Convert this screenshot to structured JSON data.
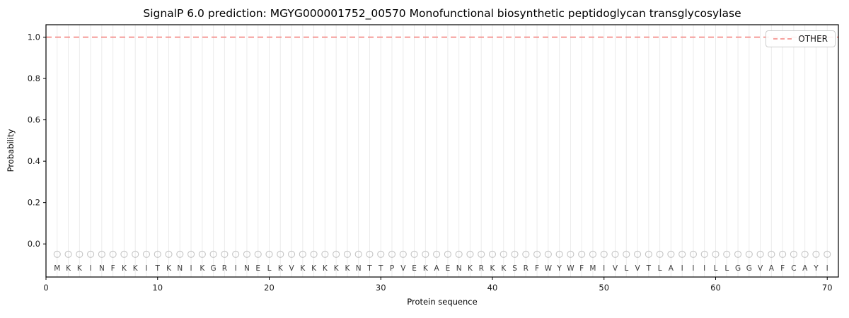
{
  "chart_data": {
    "type": "line",
    "title": "SignalP 6.0 prediction: MGYG000001752_00570 Monofunctional biosynthetic peptidoglycan transglycosylase",
    "xlabel": "Protein sequence",
    "ylabel": "Probability",
    "xlim": [
      0,
      71
    ],
    "ylim": [
      -0.16,
      1.06
    ],
    "x_ticks": [
      0,
      10,
      20,
      30,
      40,
      50,
      60,
      70
    ],
    "y_ticks": [
      0.0,
      0.2,
      0.4,
      0.6,
      0.8,
      1.0
    ],
    "grid": "vertical-per-residue",
    "sequence": [
      "M",
      "K",
      "K",
      "I",
      "N",
      "F",
      "K",
      "K",
      "I",
      "T",
      "K",
      "N",
      "I",
      "K",
      "G",
      "R",
      "I",
      "N",
      "E",
      "L",
      "K",
      "V",
      "K",
      "K",
      "K",
      "K",
      "K",
      "N",
      "T",
      "T",
      "P",
      "V",
      "E",
      "K",
      "A",
      "E",
      "N",
      "K",
      "R",
      "K",
      "K",
      "S",
      "R",
      "F",
      "W",
      "Y",
      "W",
      "F",
      "M",
      "I",
      "V",
      "L",
      "V",
      "T",
      "L",
      "A",
      "I",
      "I",
      "I",
      "L",
      "L",
      "G",
      "G",
      "V",
      "A",
      "F",
      "C",
      "A",
      "Y",
      "I"
    ],
    "series": [
      {
        "name": "OTHER",
        "style": "dashed",
        "color": "#f4827f",
        "y_value": 1.0,
        "x_start": 1,
        "x_end": 70,
        "values": [
          1.0,
          1.0,
          1.0,
          1.0,
          1.0,
          1.0,
          1.0,
          1.0,
          1.0,
          1.0,
          1.0,
          1.0,
          1.0,
          1.0,
          1.0,
          1.0,
          1.0,
          1.0,
          1.0,
          1.0,
          1.0,
          1.0,
          1.0,
          1.0,
          1.0,
          1.0,
          1.0,
          1.0,
          1.0,
          1.0,
          1.0,
          1.0,
          1.0,
          1.0,
          1.0,
          1.0,
          1.0,
          1.0,
          1.0,
          1.0,
          1.0,
          1.0,
          1.0,
          1.0,
          1.0,
          1.0,
          1.0,
          1.0,
          1.0,
          1.0,
          1.0,
          1.0,
          1.0,
          1.0,
          1.0,
          1.0,
          1.0,
          1.0,
          1.0,
          1.0,
          1.0,
          1.0,
          1.0,
          1.0,
          1.0,
          1.0,
          1.0,
          1.0,
          1.0,
          1.0
        ]
      }
    ],
    "marker_row": {
      "symbol": "O",
      "y_value": -0.05,
      "color": "#c4c4c4"
    },
    "legend": {
      "position": "upper right",
      "entries": [
        "OTHER"
      ]
    }
  }
}
